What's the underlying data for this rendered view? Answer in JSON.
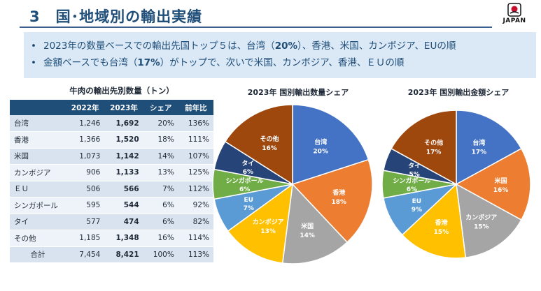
{
  "header": {
    "title": "3　国･地域別の輸出実績",
    "logo_text": "JAPAN"
  },
  "summary": {
    "bullet": "•",
    "lines": [
      {
        "before": "2023年の数量ベースでの輸出先国トップ５は、台湾（",
        "emph": "20%",
        "after": "）、香港、米国、カンボジア、EUの順"
      },
      {
        "before": "金額ベースでも台湾（",
        "emph": "17%",
        "after": "）がトップで、次いで米国、カンボジア、香港、ＥＵの順"
      }
    ]
  },
  "table": {
    "title": "牛肉の輸出先別数量（トン）",
    "headers": [
      "",
      "2022年",
      "2023年",
      "シェア",
      "前年比"
    ],
    "rows": [
      {
        "name": "台湾",
        "y2022": "1,246",
        "y2023": "1,692",
        "share": "20%",
        "yoy": "136%"
      },
      {
        "name": "香港",
        "y2022": "1,366",
        "y2023": "1,520",
        "share": "18%",
        "yoy": "111%"
      },
      {
        "name": "米国",
        "y2022": "1,073",
        "y2023": "1,142",
        "share": "14%",
        "yoy": "107%"
      },
      {
        "name": "カンボジア",
        "y2022": "906",
        "y2023": "1,133",
        "share": "13%",
        "yoy": "125%"
      },
      {
        "name": "ＥＵ",
        "y2022": "506",
        "y2023": "566",
        "share": "7%",
        "yoy": "112%"
      },
      {
        "name": "シンガポール",
        "y2022": "595",
        "y2023": "544",
        "share": "6%",
        "yoy": "92%"
      },
      {
        "name": "タイ",
        "y2022": "577",
        "y2023": "474",
        "share": "6%",
        "yoy": "82%"
      },
      {
        "name": "その他",
        "y2022": "1,185",
        "y2023": "1,348",
        "share": "16%",
        "yoy": "114%"
      }
    ],
    "total": {
      "name": "合計",
      "y2022": "7,454",
      "y2023": "8,421",
      "share": "100%",
      "yoy": "113%"
    }
  },
  "chart_data": [
    {
      "type": "pie",
      "title": "2023年 国別輸出数量シェア",
      "slices": [
        {
          "label": "台湾",
          "value": 20,
          "color": "#4472c4",
          "text": "20%"
        },
        {
          "label": "香港",
          "value": 18,
          "color": "#ed7d31",
          "text": "18%"
        },
        {
          "label": "米国",
          "value": 14,
          "color": "#a5a5a5",
          "text": "14%"
        },
        {
          "label": "カンボジア",
          "value": 13,
          "color": "#ffc000",
          "text": "13%"
        },
        {
          "label": "EU",
          "value": 7,
          "color": "#5b9bd5",
          "text": "7%"
        },
        {
          "label": "シンガポール",
          "value": 6,
          "color": "#70ad47",
          "text": "6%"
        },
        {
          "label": "タイ",
          "value": 6,
          "color": "#264478",
          "text": "6%"
        },
        {
          "label": "その他",
          "value": 16,
          "color": "#9e480e",
          "text": "16%"
        }
      ]
    },
    {
      "type": "pie",
      "title": "2023年 国別輸出金額シェア",
      "slices": [
        {
          "label": "台湾",
          "value": 17,
          "color": "#4472c4",
          "text": "17%"
        },
        {
          "label": "米国",
          "value": 16,
          "color": "#ed7d31",
          "text": "16%"
        },
        {
          "label": "カンボジア",
          "value": 15,
          "color": "#a5a5a5",
          "text": "15%"
        },
        {
          "label": "香港",
          "value": 15,
          "color": "#ffc000",
          "text": "15%"
        },
        {
          "label": "EU",
          "value": 9,
          "color": "#5b9bd5",
          "text": "9%"
        },
        {
          "label": "シンガポール",
          "value": 6,
          "color": "#70ad47",
          "text": "6%"
        },
        {
          "label": "タイ",
          "value": 5,
          "color": "#264478",
          "text": "5%"
        },
        {
          "label": "その他",
          "value": 17,
          "color": "#9e480e",
          "text": "17%"
        }
      ]
    }
  ]
}
